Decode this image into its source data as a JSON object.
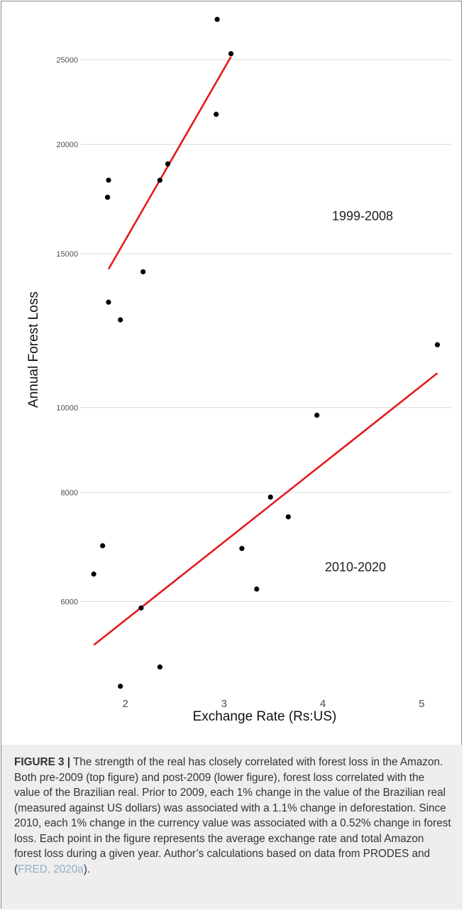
{
  "chart_data": {
    "type": "scatter",
    "xlabel": "Exchange Rate (Rs:US)",
    "ylabel": "Annual Forest Loss",
    "y_scale": "log",
    "xlim": [
      1.55,
      5.3
    ],
    "ylim": [
      4700,
      28500
    ],
    "x_ticks": [
      2,
      3,
      4,
      5
    ],
    "y_ticks": [
      6000,
      8000,
      10000,
      15000,
      20000,
      25000
    ],
    "x_tick_labels": [
      "2",
      "3",
      "4",
      "5"
    ],
    "y_tick_labels": [
      "6000",
      "8000",
      "10000",
      "15000",
      "20000",
      "25000"
    ],
    "grid": "horizontal",
    "point_color": "#000000",
    "line_color": "#e41a1c",
    "series": [
      {
        "label": "1999-2008",
        "points": [
          {
            "x": 1.82,
            "y": 17400
          },
          {
            "x": 1.83,
            "y": 18200
          },
          {
            "x": 1.83,
            "y": 13200
          },
          {
            "x": 1.95,
            "y": 12600
          },
          {
            "x": 2.18,
            "y": 14300
          },
          {
            "x": 2.35,
            "y": 18200
          },
          {
            "x": 2.43,
            "y": 19000
          },
          {
            "x": 2.92,
            "y": 21650
          },
          {
            "x": 2.93,
            "y": 27800
          },
          {
            "x": 3.07,
            "y": 25400
          }
        ],
        "fit": [
          {
            "x": 1.83,
            "y": 14400
          },
          {
            "x": 3.07,
            "y": 25200
          }
        ]
      },
      {
        "label": "2010-2020",
        "points": [
          {
            "x": 1.68,
            "y": 6450
          },
          {
            "x": 1.77,
            "y": 6950
          },
          {
            "x": 1.95,
            "y": 4800
          },
          {
            "x": 2.16,
            "y": 5900
          },
          {
            "x": 2.35,
            "y": 5050
          },
          {
            "x": 3.18,
            "y": 6900
          },
          {
            "x": 3.33,
            "y": 6200
          },
          {
            "x": 3.47,
            "y": 7900
          },
          {
            "x": 3.65,
            "y": 7500
          },
          {
            "x": 3.94,
            "y": 9800
          },
          {
            "x": 5.16,
            "y": 11800
          }
        ],
        "fit": [
          {
            "x": 1.68,
            "y": 5350
          },
          {
            "x": 5.16,
            "y": 10950
          }
        ]
      }
    ]
  },
  "caption": {
    "label": "FIGURE 3 |",
    "text_before_cite": " The strength of the real has closely correlated with forest loss in the Amazon. Both pre-2009 (top figure) and post-2009 (lower figure), forest loss correlated with the value of the Brazilian real. Prior to 2009, each 1% change in the value of the Brazilian real (measured against US dollars) was associated with a 1.1% change in deforestation. Since 2010, each 1% change in the currency value was associated with a 0.52% change in forest loss. Each point in the figure represents the average exchange rate and total Amazon forest loss during a given year. Author’s calculations based on data from PRODES and (",
    "citation": "FRED, 2020a",
    "text_after_cite": ")."
  }
}
